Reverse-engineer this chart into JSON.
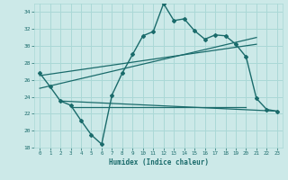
{
  "xlabel": "Humidex (Indice chaleur)",
  "bg_color": "#cce9e8",
  "grid_color": "#aad8d6",
  "line_color": "#1a6b6b",
  "x_ticks": [
    0,
    1,
    2,
    3,
    4,
    5,
    6,
    7,
    8,
    9,
    10,
    11,
    12,
    13,
    14,
    15,
    16,
    17,
    18,
    19,
    20,
    21,
    22,
    23
  ],
  "ylim": [
    18,
    35
  ],
  "xlim": [
    -0.5,
    23.5
  ],
  "y_ticks": [
    18,
    20,
    22,
    24,
    26,
    28,
    30,
    32,
    34
  ],
  "humidex_curve": {
    "x": [
      0,
      1,
      2,
      3,
      4,
      5,
      6,
      7,
      8,
      9,
      10,
      11,
      12,
      13,
      14,
      15,
      16,
      17,
      18,
      19,
      20,
      21,
      22,
      23
    ],
    "y": [
      26.8,
      25.2,
      23.5,
      23.0,
      21.2,
      19.5,
      18.4,
      24.2,
      26.8,
      29.0,
      31.2,
      31.7,
      35.0,
      33.0,
      33.2,
      31.8,
      30.8,
      31.3,
      31.2,
      30.2,
      28.7,
      23.8,
      22.5,
      22.3
    ]
  },
  "upper_line1": {
    "x": [
      0,
      21
    ],
    "y": [
      26.5,
      30.2
    ]
  },
  "upper_line2": {
    "x": [
      0,
      21
    ],
    "y": [
      25.0,
      31.0
    ]
  },
  "lower_diag_line": {
    "x": [
      2,
      23
    ],
    "y": [
      23.5,
      22.3
    ]
  },
  "flat_line": {
    "x": [
      3,
      20
    ],
    "y": [
      22.8,
      22.8
    ]
  }
}
